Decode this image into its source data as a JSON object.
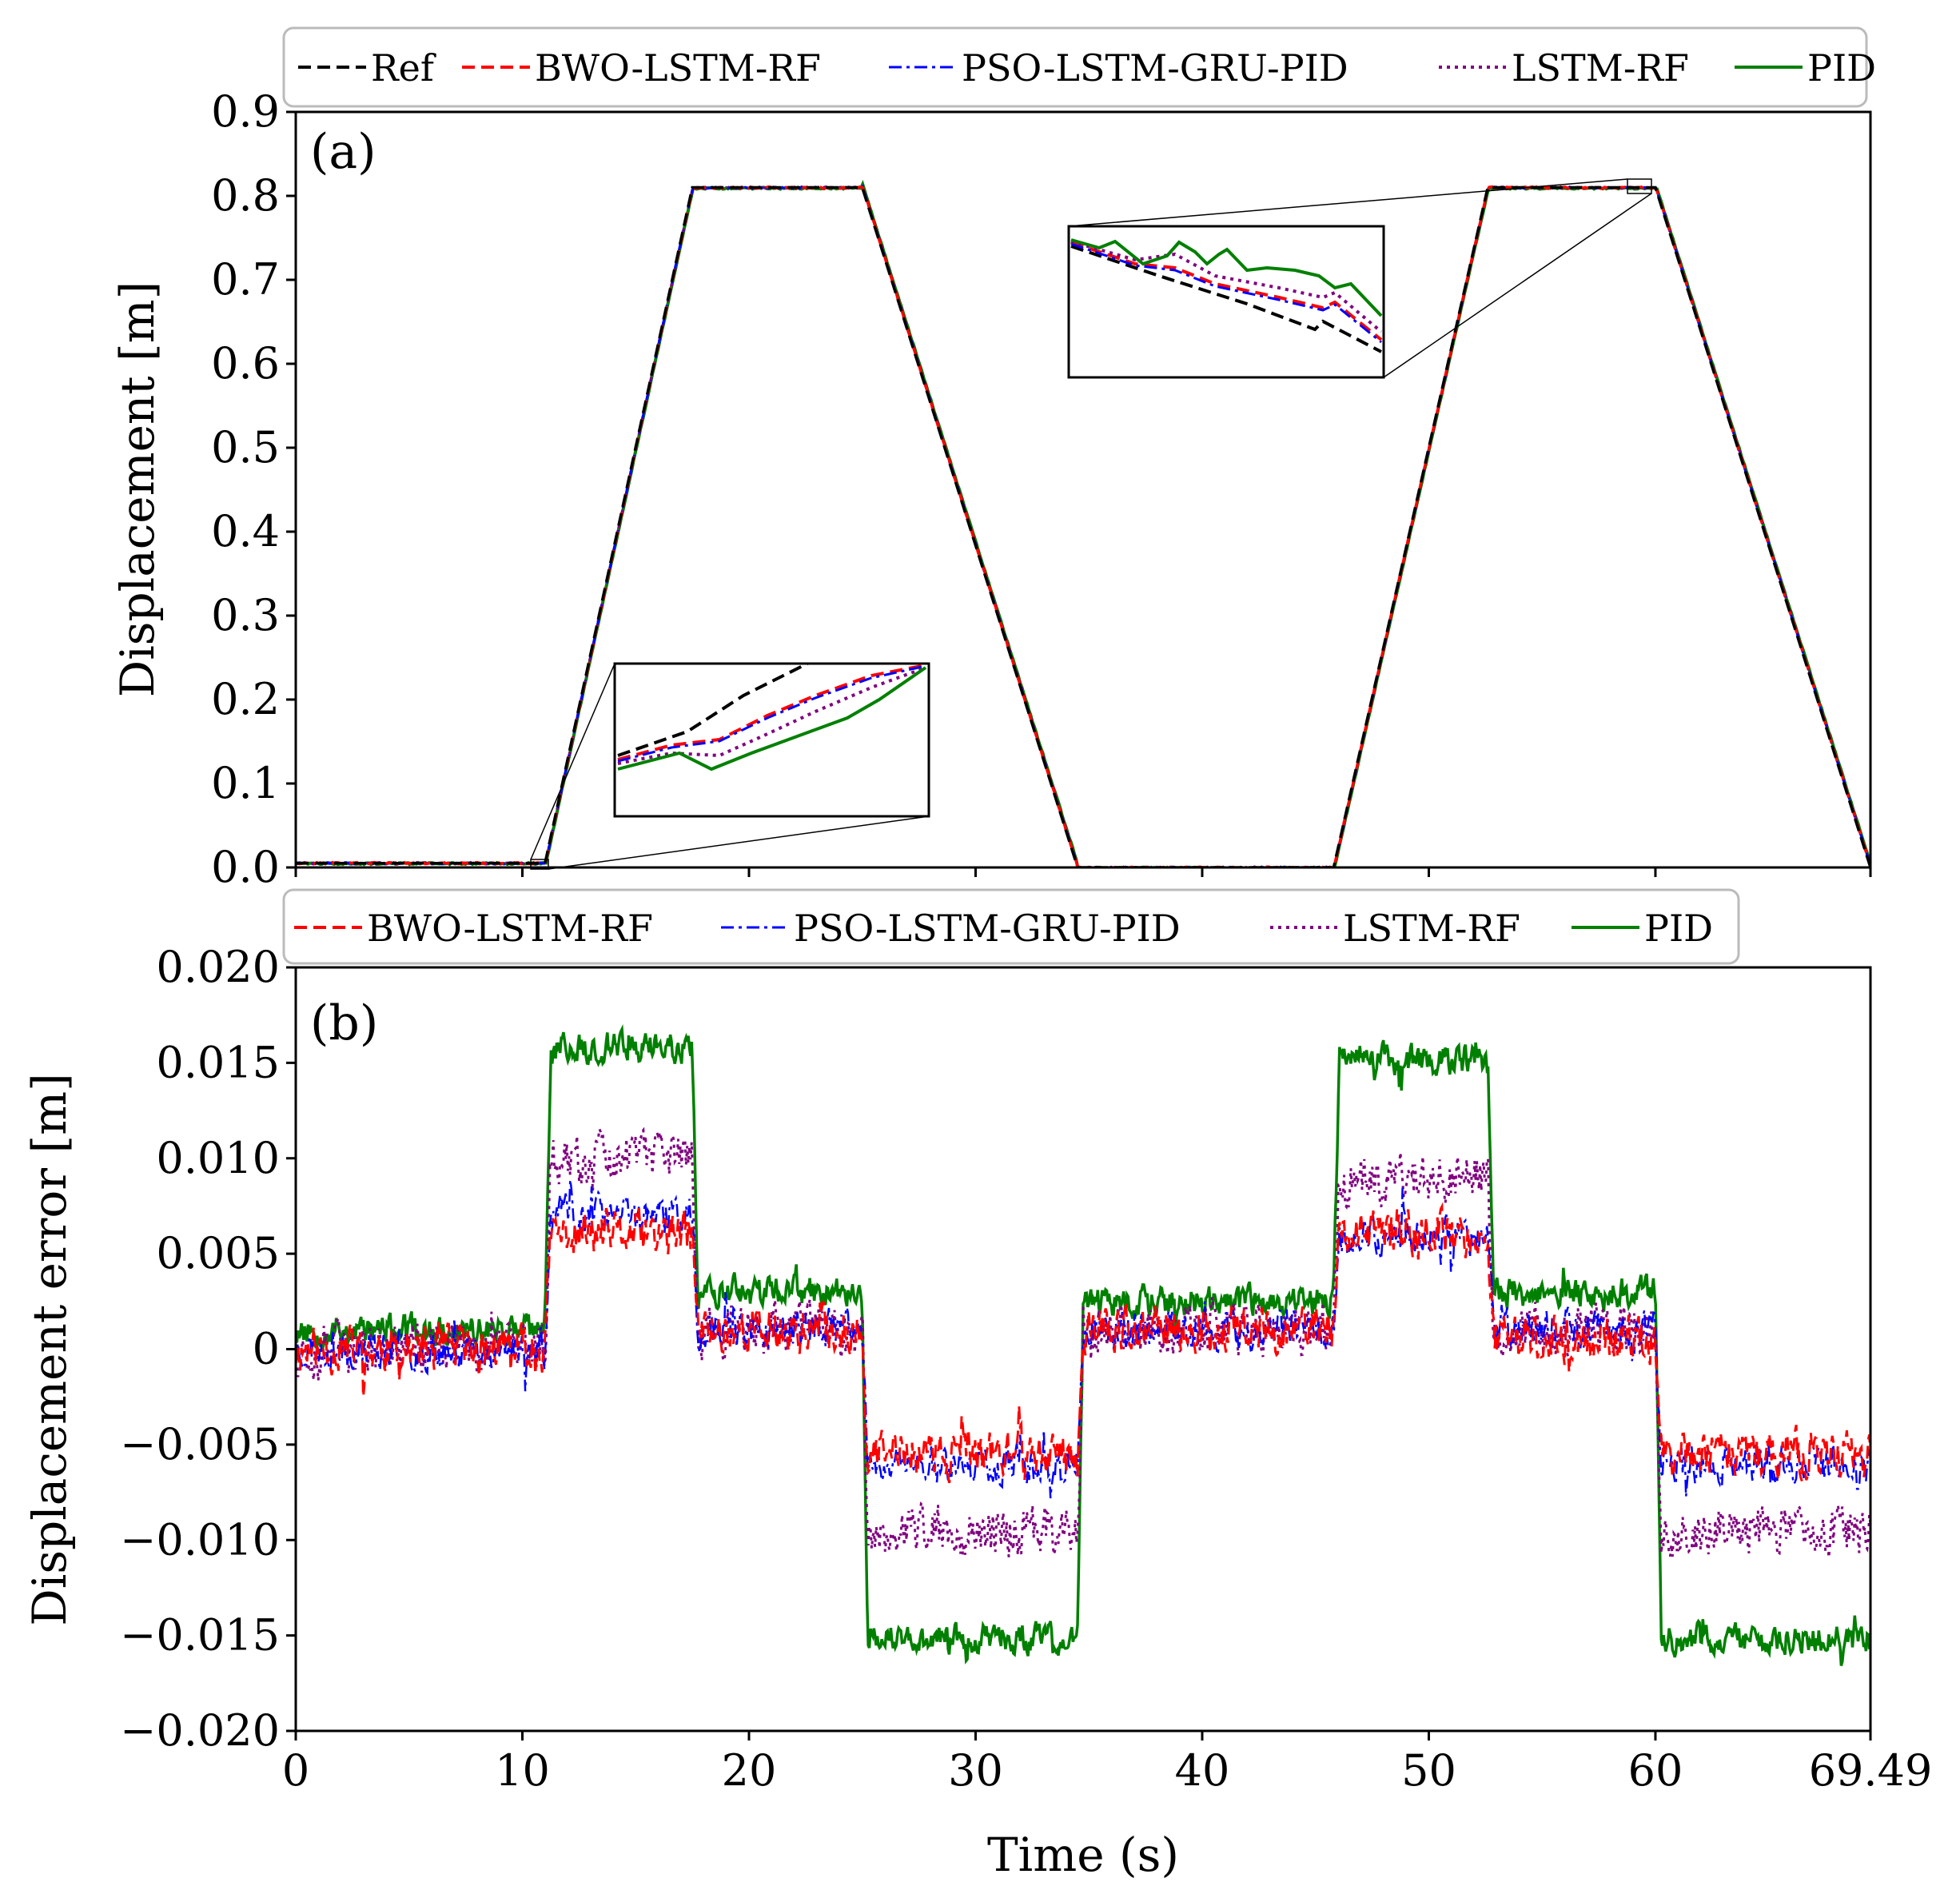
{
  "colors": {
    "ref": "#000000",
    "bwo": "#ff0000",
    "pso": "#0000ff",
    "lstm": "#800080",
    "pid": "#008000"
  },
  "chart_data": [
    {
      "type": "line",
      "panel": "(a)",
      "ylabel": "Displacement [m]",
      "xlim": [
        0,
        69.49
      ],
      "ylim": [
        0,
        0.9
      ],
      "yticks": [
        "0.0",
        "0.1",
        "0.2",
        "0.3",
        "0.4",
        "0.5",
        "0.6",
        "0.7",
        "0.8",
        "0.9"
      ],
      "legend": [
        "Ref",
        "BWO-LSTM-RF",
        "PSO-LSTM-GRU-PID",
        "LSTM-RF",
        "PID"
      ],
      "reference_profile": {
        "t": [
          0,
          11.0,
          17.5,
          25.0,
          34.5,
          45.8,
          52.6,
          60.0,
          69.49
        ],
        "y": [
          0.005,
          0.005,
          0.81,
          0.81,
          0.0,
          0.0,
          0.81,
          0.81,
          0.0
        ]
      },
      "insets": [
        {
          "zoom_region_t": [
            10.4,
            11.2
          ],
          "placement": "lower-middle"
        },
        {
          "zoom_region_t": [
            59.0,
            60.0
          ],
          "placement": "upper-middle"
        }
      ]
    },
    {
      "type": "line",
      "panel": "(b)",
      "xlabel": "Time (s)",
      "ylabel": "Displacement error [m]",
      "xlim": [
        0,
        69.49
      ],
      "ylim": [
        -0.02,
        0.02
      ],
      "xticks": [
        "0",
        "10",
        "20",
        "30",
        "40",
        "50",
        "60",
        "69.49"
      ],
      "yticks": [
        "0.020",
        "0.015",
        "0.010",
        "0.005",
        "0",
        "−0.005",
        "−0.010",
        "−0.015",
        "−0.020"
      ],
      "legend": [
        "BWO-LSTM-RF",
        "PSO-LSTM-GRU-PID",
        "LSTM-RF",
        "PID"
      ],
      "segments_t": [
        0,
        11.0,
        17.5,
        25.0,
        34.5,
        45.8,
        52.6,
        60.0,
        69.49
      ],
      "series": [
        {
          "name": "BWO-LSTM-RF",
          "segment_means": [
            0.0,
            0.006,
            0.001,
            -0.0055,
            0.001,
            0.006,
            0.0005,
            -0.0055
          ]
        },
        {
          "name": "PSO-LSTM-GRU-PID",
          "segment_means": [
            0.0,
            0.007,
            0.001,
            -0.006,
            0.001,
            0.006,
            0.001,
            -0.006
          ]
        },
        {
          "name": "LSTM-RF",
          "segment_means": [
            0.0,
            0.01,
            0.001,
            -0.0095,
            0.001,
            0.009,
            0.001,
            -0.0095
          ]
        },
        {
          "name": "PID",
          "segment_means": [
            0.001,
            0.0158,
            0.003,
            -0.0152,
            0.0025,
            0.0152,
            0.003,
            -0.0152
          ]
        }
      ]
    }
  ]
}
